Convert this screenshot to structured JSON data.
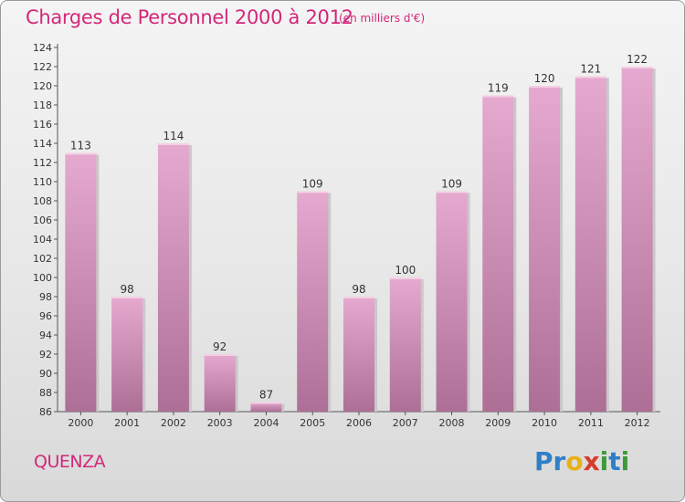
{
  "header": {
    "title": "Charges de Personnel 2000 à 2012",
    "unit": "(en milliers d'€)"
  },
  "footer": {
    "commune": "QUENZA",
    "logo": [
      "P",
      "r",
      "o",
      "x",
      "i",
      "t",
      "i"
    ]
  },
  "colors": {
    "title": "#d2287a",
    "bar_top": "#e6a9cf",
    "bar_bottom": "#ad6f96",
    "logo": [
      "#2f7fc7",
      "#2f7fc7",
      "#e8b017",
      "#d63b2a",
      "#3d9a3a",
      "#2f7fc7",
      "#3d9a3a"
    ]
  },
  "chart_data": {
    "type": "bar",
    "title": "Charges de Personnel 2000 à 2012",
    "subtitle": "(en milliers d'€)",
    "xlabel": "",
    "ylabel": "",
    "categories": [
      "2000",
      "2001",
      "2002",
      "2003",
      "2004",
      "2005",
      "2006",
      "2007",
      "2008",
      "2009",
      "2010",
      "2011",
      "2012"
    ],
    "values": [
      113,
      98,
      114,
      92,
      87,
      109,
      98,
      100,
      109,
      119,
      120,
      121,
      122
    ],
    "data_labels": [
      "113",
      "98",
      "114",
      "92",
      "87",
      "109",
      "98",
      "100",
      "109",
      "119",
      "120",
      "121",
      "122"
    ],
    "ylim": [
      86,
      124
    ],
    "yticks": [
      86,
      88,
      90,
      92,
      94,
      96,
      98,
      100,
      102,
      104,
      106,
      108,
      110,
      112,
      114,
      116,
      118,
      120,
      122,
      124
    ],
    "grid": false,
    "legend": "none"
  }
}
